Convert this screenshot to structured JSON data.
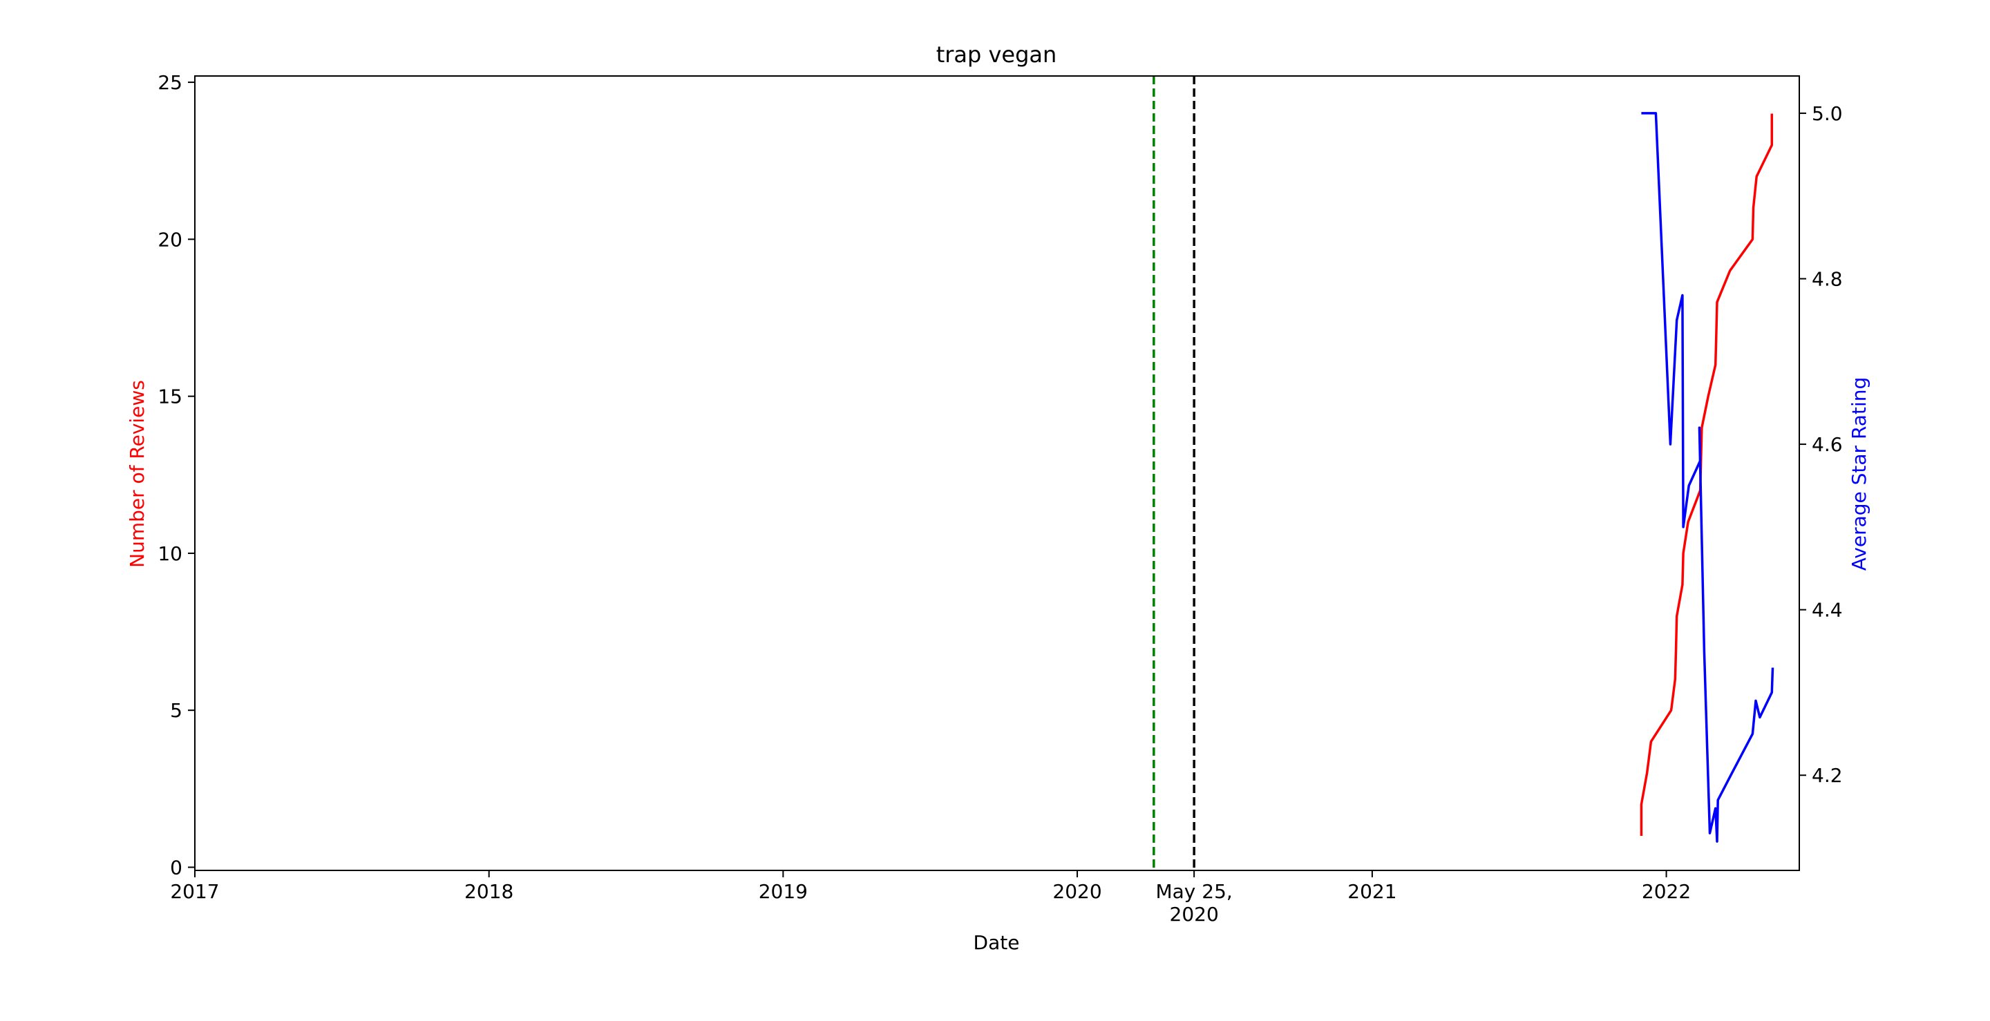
{
  "chart_data": {
    "type": "line",
    "title": "trap vegan",
    "xlabel": "Date",
    "ylabel_left": "Number of Reviews",
    "ylabel_right": "Average Star Rating",
    "x_axis": {
      "range": [
        "2017-01-01",
        "2022-06-15"
      ],
      "ticks": [
        {
          "date": "2017-01-01",
          "label": "2017"
        },
        {
          "date": "2018-01-01",
          "label": "2018"
        },
        {
          "date": "2019-01-01",
          "label": "2019"
        },
        {
          "date": "2020-01-01",
          "label": "2020"
        },
        {
          "date": "2020-05-25",
          "label": "May 25,\n2020"
        },
        {
          "date": "2021-01-01",
          "label": "2021"
        },
        {
          "date": "2022-01-01",
          "label": "2022"
        }
      ]
    },
    "y_left": {
      "range": [
        -0.1,
        25.2
      ],
      "ticks": [
        0,
        5,
        10,
        15,
        20,
        25
      ]
    },
    "y_right": {
      "range": [
        4.085,
        5.045
      ],
      "ticks": [
        "4.2",
        "4.4",
        "4.6",
        "4.8",
        "5.0"
      ]
    },
    "grid": false,
    "vlines": [
      {
        "date": "2020-05-25",
        "color": "#000000",
        "style": "dashed"
      },
      {
        "date": "2020-04-05",
        "color": "#008000",
        "style": "dashed"
      }
    ],
    "series": [
      {
        "axis": "left",
        "color": "#ff0000",
        "points": [
          [
            "2021-12-01",
            1
          ],
          [
            "2021-12-01",
            2
          ],
          [
            "2021-12-08",
            3
          ],
          [
            "2021-12-13",
            4
          ],
          [
            "2022-01-07",
            5
          ],
          [
            "2022-01-12",
            6
          ],
          [
            "2022-01-13",
            7
          ],
          [
            "2022-01-14",
            8
          ],
          [
            "2022-01-21",
            9
          ],
          [
            "2022-01-22",
            10
          ],
          [
            "2022-01-28",
            11
          ],
          [
            "2022-02-12",
            12
          ],
          [
            "2022-02-14",
            14
          ],
          [
            "2022-02-22",
            15
          ],
          [
            "2022-03-03",
            16
          ],
          [
            "2022-03-04",
            17
          ],
          [
            "2022-03-05",
            18
          ],
          [
            "2022-03-21",
            19
          ],
          [
            "2022-04-18",
            20
          ],
          [
            "2022-04-19",
            21
          ],
          [
            "2022-04-23",
            22
          ],
          [
            "2022-05-12",
            23
          ],
          [
            "2022-05-12",
            24
          ]
        ]
      },
      {
        "axis": "right",
        "color": "#0000ff",
        "points": [
          [
            "2021-12-01",
            5.0
          ],
          [
            "2021-12-19",
            5.0
          ],
          [
            "2022-01-06",
            4.6
          ],
          [
            "2022-01-14",
            4.75
          ],
          [
            "2022-01-21",
            4.78
          ],
          [
            "2022-01-22",
            4.5
          ],
          [
            "2022-01-29",
            4.55
          ],
          [
            "2022-02-12",
            4.58
          ],
          [
            "2022-02-11",
            4.62
          ],
          [
            "2022-02-17",
            4.35
          ],
          [
            "2022-02-24",
            4.13
          ],
          [
            "2022-03-03",
            4.16
          ],
          [
            "2022-03-05",
            4.12
          ],
          [
            "2022-03-06",
            4.17
          ],
          [
            "2022-03-22",
            4.2
          ],
          [
            "2022-04-18",
            4.25
          ],
          [
            "2022-04-22",
            4.29
          ],
          [
            "2022-04-27",
            4.27
          ],
          [
            "2022-05-12",
            4.3
          ],
          [
            "2022-05-13",
            4.33
          ]
        ]
      }
    ]
  }
}
